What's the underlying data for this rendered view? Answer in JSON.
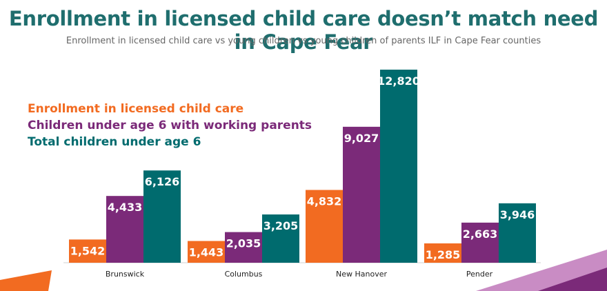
{
  "header": {
    "title": "Enrollment in licensed child care doesn’t match need in Cape Fear",
    "subtitle": "Enrollment in licensed child care vs young children vs young children of parents ILF in Cape Fear counties"
  },
  "colors": {
    "enrollment": "#f26b21",
    "working_parents": "#7b2a79",
    "total": "#006b6e",
    "title": "#1f6e6e"
  },
  "chart_data": {
    "type": "bar",
    "title": "Enrollment in licensed child care doesn’t match need in Cape Fear",
    "subtitle": "Enrollment in licensed child care vs young children vs young children of parents ILF in Cape Fear counties",
    "categories": [
      "Brunswick",
      "Columbus",
      "New Hanover",
      "Pender"
    ],
    "series": [
      {
        "name": "Enrollment in licensed child care",
        "values": [
          1542,
          1443,
          4832,
          1285
        ],
        "labels": [
          "1,542",
          "1,443",
          "4,832",
          "1,285"
        ]
      },
      {
        "name": "Children under age 6 with working parents",
        "values": [
          4433,
          2035,
          9027,
          2663
        ],
        "labels": [
          "4,433",
          "2,035",
          "9,027",
          "2,663"
        ]
      },
      {
        "name": "Total children under age 6",
        "values": [
          6126,
          3205,
          12820,
          3946
        ],
        "labels": [
          "6,126",
          "3,205",
          "12,820",
          "3,946"
        ]
      }
    ],
    "ylim": [
      0,
      12820
    ],
    "xlabel": "",
    "ylabel": "",
    "legend_position": "top-left"
  }
}
